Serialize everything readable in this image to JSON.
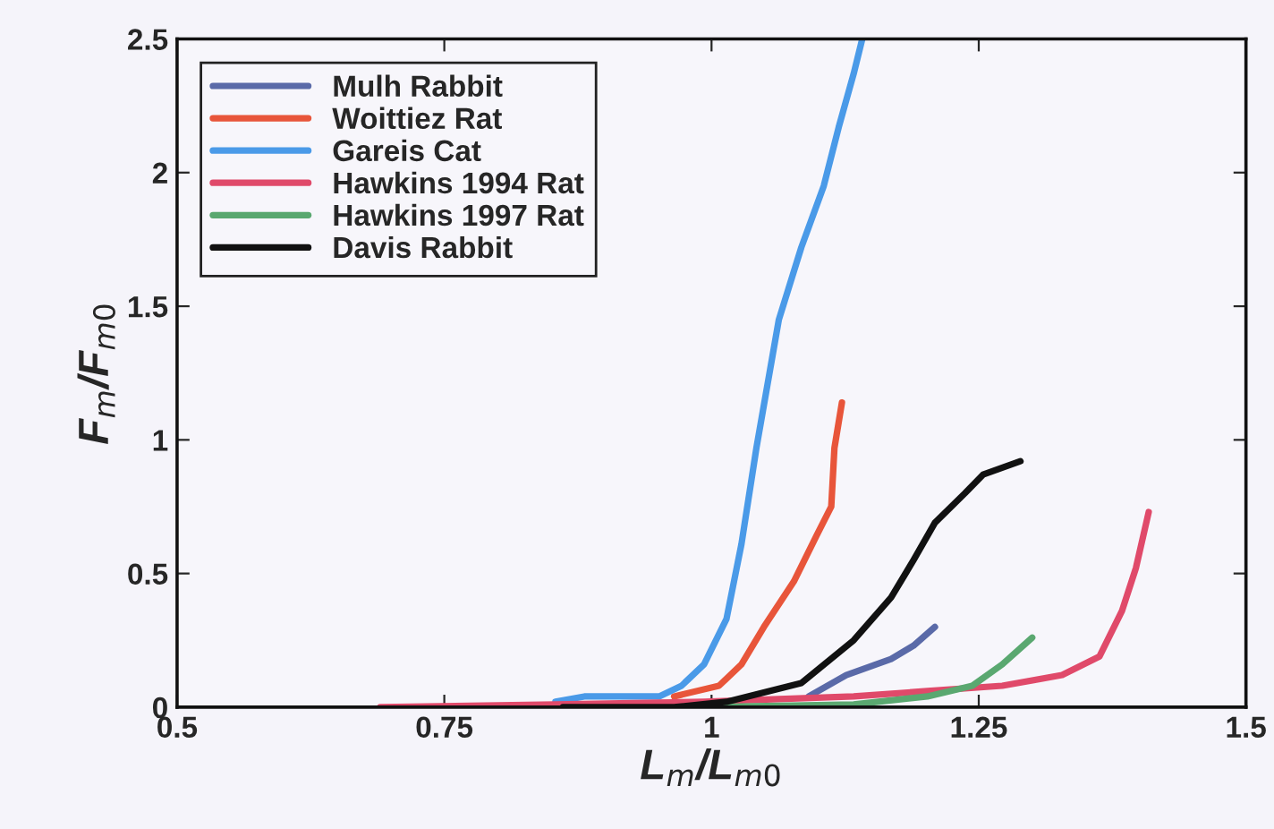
{
  "chart_data": {
    "type": "line",
    "xlabel": "L$_{m}$/L$_{m0}$",
    "ylabel": "F$_{m}$/F$_{m0}$",
    "xlim": [
      0.5,
      1.5
    ],
    "xticks": [
      0.5,
      0.75,
      1,
      1.25,
      1.5
    ],
    "ylim": [
      0,
      2.5
    ],
    "yticks": [
      0,
      0.5,
      1,
      1.5,
      2,
      2.5
    ],
    "grid": false,
    "legend": "top left",
    "line_style": "solid",
    "marker": "none",
    "series": [
      {
        "name": "Mulh Rabbit",
        "color": "#5a6aa8",
        "x": [
          1.091,
          1.126,
          1.168,
          1.189,
          1.209
        ],
        "values": [
          0.04,
          0.12,
          0.18,
          0.23,
          0.3
        ]
      },
      {
        "name": "Woittiez Rat",
        "color": "#e8553a",
        "x": [
          0.965,
          1.007,
          1.028,
          1.049,
          1.077,
          1.098,
          1.112,
          1.115,
          1.122
        ],
        "values": [
          0.04,
          0.08,
          0.16,
          0.3,
          0.47,
          0.64,
          0.75,
          0.97,
          1.14
        ]
      },
      {
        "name": "Gareis Cat",
        "color": "#4a9ae8",
        "x": [
          0.854,
          0.881,
          0.951,
          0.972,
          0.993,
          1.014,
          1.028,
          1.042,
          1.063,
          1.084,
          1.105,
          1.119,
          1.133,
          1.141
        ],
        "values": [
          0.02,
          0.04,
          0.04,
          0.08,
          0.16,
          0.33,
          0.61,
          0.97,
          1.45,
          1.72,
          1.95,
          2.17,
          2.37,
          2.5
        ]
      },
      {
        "name": "Hawkins 1994 Rat",
        "color": "#e04a6a",
        "x": [
          0.69,
          0.854,
          0.993,
          1.133,
          1.202,
          1.272,
          1.328,
          1.363,
          1.384,
          1.397,
          1.409
        ],
        "values": [
          0,
          0.01,
          0.02,
          0.04,
          0.06,
          0.08,
          0.12,
          0.19,
          0.36,
          0.52,
          0.73
        ]
      },
      {
        "name": "Hawkins 1997 Rat",
        "color": "#5aa870",
        "x": [
          0.993,
          1.133,
          1.202,
          1.244,
          1.272,
          1.3
        ],
        "values": [
          0,
          0.01,
          0.04,
          0.08,
          0.16,
          0.26
        ]
      },
      {
        "name": "Davis Rabbit",
        "color": "#111111",
        "x": [
          0.861,
          0.965,
          1.014,
          1.084,
          1.133,
          1.168,
          1.189,
          1.209,
          1.237,
          1.254,
          1.289
        ],
        "values": [
          0,
          0,
          0.02,
          0.09,
          0.25,
          0.41,
          0.55,
          0.69,
          0.8,
          0.87,
          0.92
        ]
      }
    ]
  }
}
